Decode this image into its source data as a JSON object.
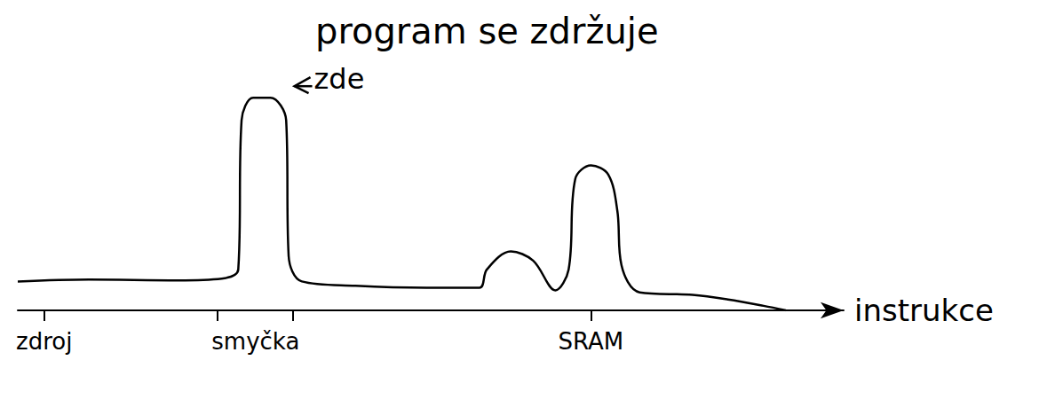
{
  "chart_data": {
    "type": "line",
    "title": "program se zdržuje",
    "x_label": "instrukce",
    "annotations": [
      {
        "text": "zde",
        "x": 33.5,
        "y": 104
      }
    ],
    "x": [
      0,
      8.6,
      19.4,
      24.7,
      26.7,
      27.1,
      28.5,
      30.6,
      32.5,
      32.8,
      34.4,
      40.9,
      49.5,
      55.9,
      56.8,
      59.7,
      62.4,
      65.1,
      66.7,
      67.5,
      69.4,
      71.5,
      72.6,
      73.1,
      75.3,
      81.7,
      86.0,
      90.3,
      93.0
    ],
    "values": [
      13.3,
      14.2,
      13.8,
      14.6,
      18.8,
      87.5,
      97.9,
      97.9,
      87.5,
      25,
      13.3,
      11.3,
      10.4,
      10.4,
      18.8,
      27.1,
      22.9,
      9.2,
      18.8,
      60.4,
      66.7,
      62.5,
      45.8,
      20.8,
      8.3,
      7.1,
      5.0,
      2.1,
      0
    ],
    "color": "#000000",
    "xlim": [
      0,
      100
    ],
    "ylim": [
      0,
      100
    ],
    "xticks": [
      {
        "value": 3.2,
        "label": "zdroj"
      },
      {
        "value": 28.8,
        "label": "smyčka"
      },
      {
        "value": 69.4,
        "label": "SRAM"
      }
    ],
    "tick_marks": [
      3.2,
      24.2,
      33.3,
      69.4
    ],
    "tick_labels": "x",
    "grid": false,
    "line_style": "solid",
    "marker": "none"
  }
}
